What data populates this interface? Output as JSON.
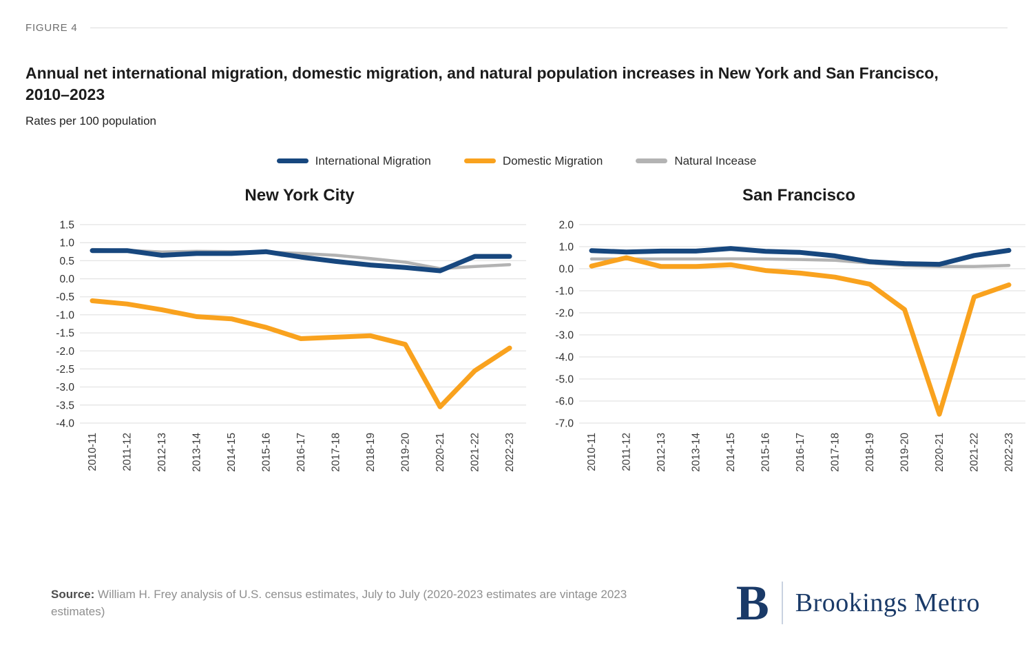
{
  "figure_label": "FIGURE 4",
  "title": "Annual net international migration, domestic migration, and natural population increases in New York and San Francisco, 2010–2023",
  "subtitle": "Rates per 100 population",
  "legend": [
    {
      "label": "International Migration",
      "color": "#17477E"
    },
    {
      "label": "Domestic Migration",
      "color": "#F9A21E"
    },
    {
      "label": "Natural Incease",
      "color": "#B3B3B3"
    }
  ],
  "chart_data": [
    {
      "type": "line",
      "title": "New York City",
      "categories": [
        "2010-11",
        "2011-12",
        "2012-13",
        "2013-14",
        "2014-15",
        "2015-16",
        "2016-17",
        "2017-18",
        "2018-19",
        "2019-20",
        "2020-21",
        "2021-22",
        "2022-23"
      ],
      "ylim": [
        -4.0,
        1.5
      ],
      "ytick_step": 0.5,
      "grid": true,
      "legend_position": "top-center",
      "series": [
        {
          "name": "International Migration",
          "color": "#17477E",
          "width": 7,
          "values": [
            0.78,
            0.78,
            0.65,
            0.7,
            0.7,
            0.75,
            0.6,
            0.48,
            0.38,
            0.31,
            0.22,
            0.62,
            0.62
          ]
        },
        {
          "name": "Domestic Migration",
          "color": "#F9A21E",
          "width": 7,
          "values": [
            -0.61,
            -0.7,
            -0.86,
            -1.05,
            -1.11,
            -1.35,
            -1.66,
            -1.62,
            -1.58,
            -1.82,
            -3.55,
            -2.55,
            -1.92
          ]
        },
        {
          "name": "Natural Incease",
          "color": "#B3B3B3",
          "width": 4.5,
          "values": [
            0.81,
            0.79,
            0.74,
            0.76,
            0.75,
            0.74,
            0.7,
            0.65,
            0.56,
            0.46,
            0.28,
            0.34,
            0.39
          ]
        }
      ]
    },
    {
      "type": "line",
      "title": "San Francisco",
      "categories": [
        "2010-11",
        "2011-12",
        "2012-13",
        "2013-14",
        "2014-15",
        "2015-16",
        "2016-17",
        "2017-18",
        "2018-19",
        "2019-20",
        "2020-21",
        "2021-22",
        "2022-23"
      ],
      "ylim": [
        -7.0,
        2.0
      ],
      "ytick_step": 1.0,
      "grid": true,
      "legend_position": "top-center",
      "series": [
        {
          "name": "International Migration",
          "color": "#17477E",
          "width": 7,
          "values": [
            0.82,
            0.76,
            0.8,
            0.8,
            0.92,
            0.79,
            0.74,
            0.58,
            0.32,
            0.23,
            0.2,
            0.6,
            0.83
          ]
        },
        {
          "name": "Domestic Migration",
          "color": "#F9A21E",
          "width": 7,
          "values": [
            0.12,
            0.5,
            0.1,
            0.1,
            0.18,
            -0.08,
            -0.2,
            -0.38,
            -0.7,
            -1.85,
            -6.6,
            -1.28,
            -0.73
          ]
        },
        {
          "name": "Natural Incease",
          "color": "#B3B3B3",
          "width": 4.5,
          "values": [
            0.44,
            0.44,
            0.44,
            0.44,
            0.45,
            0.44,
            0.42,
            0.38,
            0.26,
            0.15,
            0.1,
            0.1,
            0.15
          ]
        }
      ]
    }
  ],
  "footer": {
    "source_label": "Source:",
    "source_text": "William H. Frey analysis of U.S. census estimates, July to July (2020-2023 estimates are vintage 2023 estimates)",
    "logo_initial": "B",
    "logo_name": "Brookings Metro"
  }
}
